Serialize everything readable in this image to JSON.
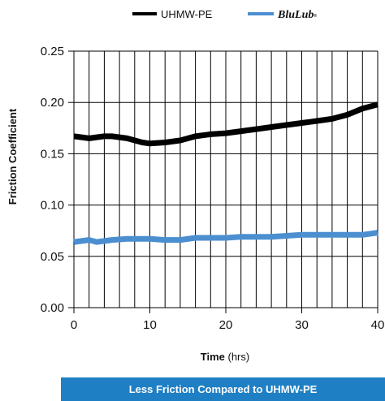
{
  "colors": {
    "uhmw": "#000000",
    "blulub": "#4b8fd0",
    "banner": "#1f7fc4",
    "grid": "#000000"
  },
  "banner_text": "Less Friction Compared to UHMW-PE",
  "chart_data": {
    "type": "line",
    "title": "",
    "xlabel": "Time",
    "xunit": "(hrs)",
    "ylabel": "Friction Coefficient",
    "xlim": [
      0,
      40
    ],
    "ylim": [
      0,
      0.25
    ],
    "xticks": [
      0,
      10,
      20,
      30,
      40
    ],
    "yticks": [
      0.0,
      0.05,
      0.1,
      0.15,
      0.2,
      0.25
    ],
    "ytick_labels": [
      "0.00",
      "0.05",
      "0.10",
      "0.15",
      "0.20",
      "0.25"
    ],
    "xtick_labels": [
      "0",
      "10",
      "20",
      "30",
      "40"
    ],
    "grid": "vertical lines every 2 hrs, horizontal at y ticks",
    "legend": "top-right",
    "series": [
      {
        "name": "UHMW-PE",
        "legend_label": "UHMW-PE",
        "x": [
          0,
          2,
          4,
          5,
          7,
          9,
          10,
          12,
          14,
          16,
          18,
          20,
          22,
          24,
          26,
          28,
          30,
          32,
          34,
          36,
          38,
          40
        ],
        "y": [
          0.167,
          0.165,
          0.167,
          0.167,
          0.165,
          0.161,
          0.16,
          0.161,
          0.163,
          0.167,
          0.169,
          0.17,
          0.172,
          0.174,
          0.176,
          0.178,
          0.18,
          0.182,
          0.184,
          0.188,
          0.194,
          0.198
        ]
      },
      {
        "name": "BluLub",
        "legend_label": "BluLub",
        "legend_mark": "®",
        "x": [
          0,
          2,
          3,
          5,
          7,
          9,
          10,
          12,
          14,
          16,
          18,
          20,
          22,
          24,
          26,
          28,
          30,
          32,
          34,
          36,
          38,
          40
        ],
        "y": [
          0.064,
          0.066,
          0.064,
          0.066,
          0.067,
          0.067,
          0.067,
          0.066,
          0.066,
          0.068,
          0.068,
          0.068,
          0.069,
          0.069,
          0.069,
          0.07,
          0.071,
          0.071,
          0.071,
          0.071,
          0.071,
          0.073
        ]
      }
    ]
  }
}
